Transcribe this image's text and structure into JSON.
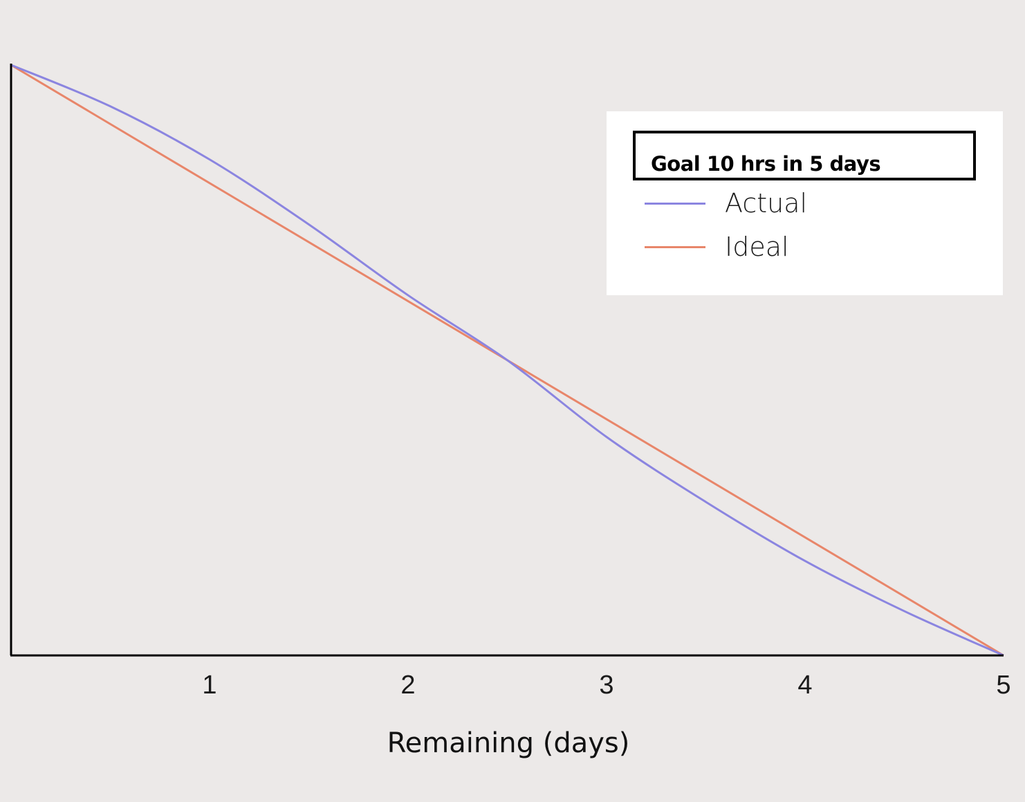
{
  "chart_data": {
    "type": "line",
    "title": "",
    "xlabel": "Remaining (days)",
    "ylabel": "",
    "xlim": [
      0,
      5
    ],
    "ylim": [
      0,
      10
    ],
    "x_ticks": [
      "1",
      "2",
      "3",
      "4",
      "5"
    ],
    "grid": false,
    "legend": {
      "title": "Goal 10 hrs in 5 days",
      "placement": "top-right"
    },
    "series": [
      {
        "name": "Actual",
        "color": "#8b85e0",
        "x": [
          0,
          0.5,
          1,
          1.5,
          2,
          2.5,
          3,
          3.5,
          4,
          4.5,
          5
        ],
        "y": [
          10,
          9.3,
          8.4,
          7.3,
          6.1,
          5.0,
          3.7,
          2.6,
          1.6,
          0.75,
          0
        ]
      },
      {
        "name": "Ideal",
        "color": "#e8866a",
        "x": [
          0,
          5
        ],
        "y": [
          10,
          0
        ]
      }
    ]
  }
}
